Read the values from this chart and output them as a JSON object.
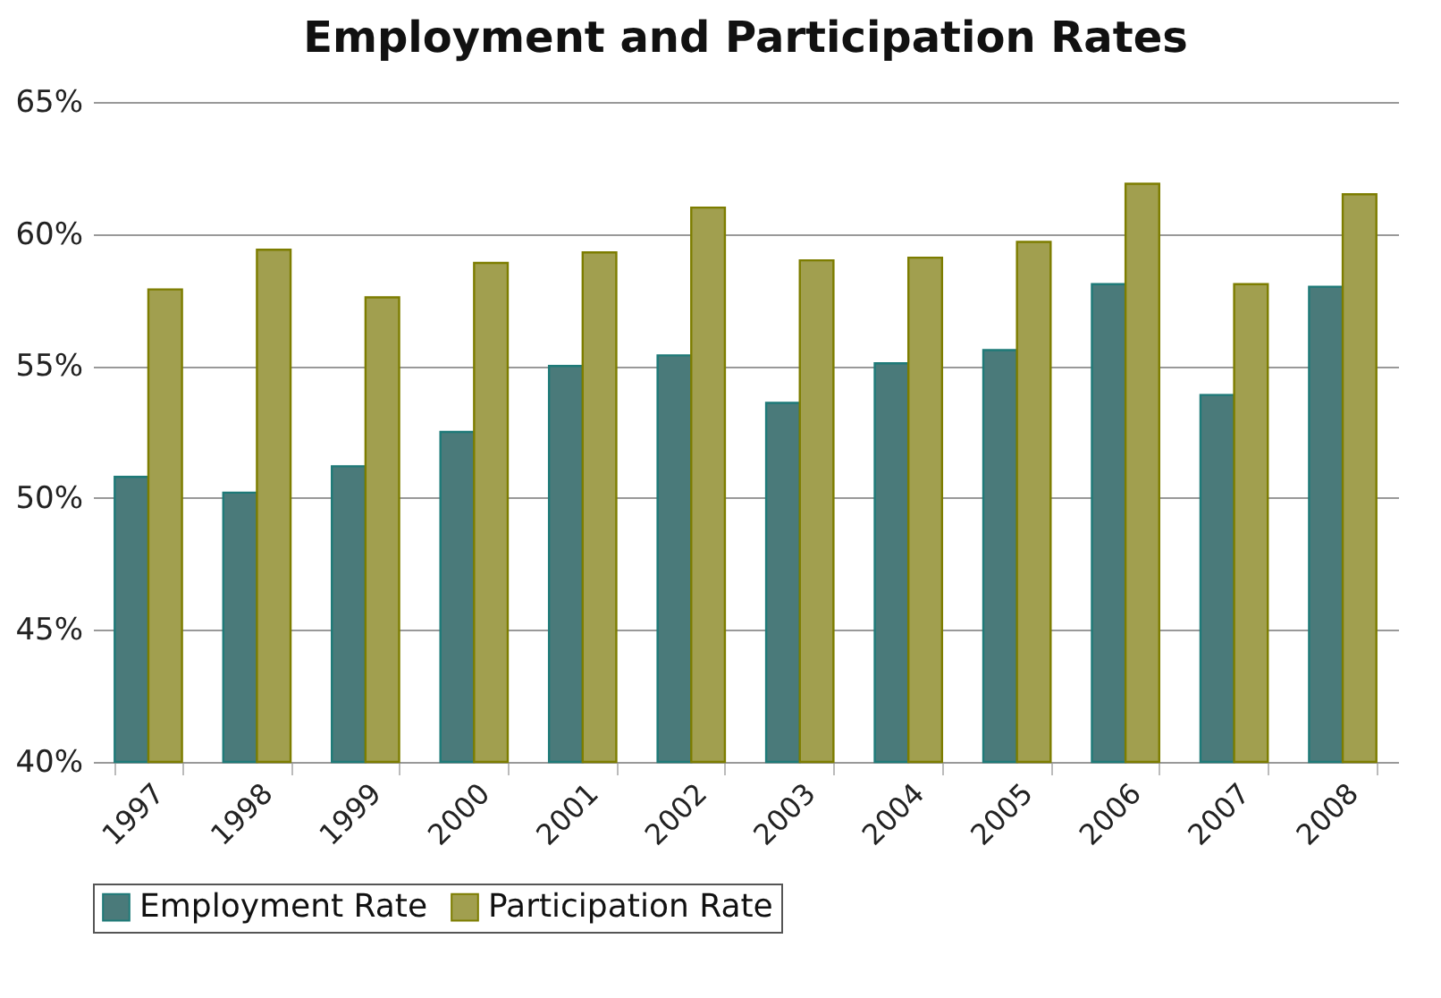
{
  "chart_data": {
    "type": "bar",
    "title": "Employment and Participation Rates",
    "categories": [
      "1997",
      "1998",
      "1999",
      "2000",
      "2001",
      "2002",
      "2003",
      "2004",
      "2005",
      "2006",
      "2007",
      "2008"
    ],
    "series": [
      {
        "name": "Employment Rate",
        "color": "#4a7a7a",
        "values": [
          50.8,
          50.2,
          51.2,
          52.5,
          55.0,
          55.4,
          53.6,
          55.1,
          55.6,
          58.1,
          53.9,
          58.0
        ]
      },
      {
        "name": "Participation Rate",
        "color": "#a19f4f",
        "values": [
          57.9,
          59.4,
          57.6,
          58.9,
          59.3,
          61.0,
          59.0,
          59.1,
          59.7,
          61.9,
          58.1,
          61.5
        ]
      }
    ],
    "ylim": [
      40,
      65
    ],
    "yticks": [
      {
        "value": 40,
        "label": "40%"
      },
      {
        "value": 45,
        "label": "45%"
      },
      {
        "value": 50,
        "label": "50%"
      },
      {
        "value": 55,
        "label": "55%"
      },
      {
        "value": 60,
        "label": "60%"
      },
      {
        "value": 65,
        "label": "65%"
      }
    ],
    "grid": "y",
    "legend": "bottom"
  }
}
